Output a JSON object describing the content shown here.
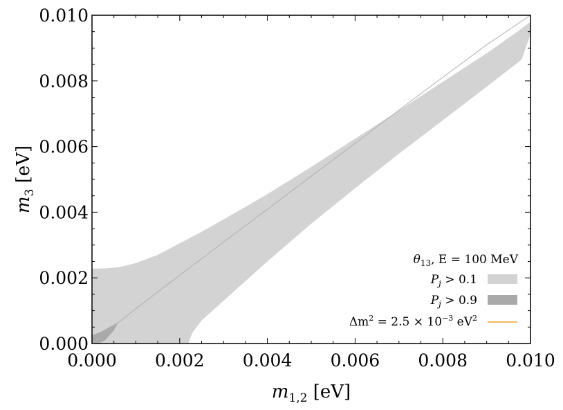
{
  "chart_data": {
    "type": "area",
    "xlabel": "m_{1,2} [eV]",
    "ylabel": "m_3 [eV]",
    "xlim": [
      0.0,
      0.01
    ],
    "ylim": [
      0.0,
      0.01
    ],
    "x_ticks": [
      "0.000",
      "0.002",
      "0.004",
      "0.006",
      "0.008",
      "0.010"
    ],
    "y_ticks": [
      "0.000",
      "0.002",
      "0.004",
      "0.006",
      "0.008",
      "0.010"
    ],
    "legend_position": "lower-right",
    "legend_title": "θ₁₃, E = 100 MeV",
    "series": [
      {
        "name": "P_j > 0.1",
        "color": "#d3d3d3",
        "upper": {
          "x": [
            0.0,
            0.0003,
            0.0006,
            0.001,
            0.0015,
            0.002,
            0.0025,
            0.003,
            0.0035,
            0.004,
            0.005,
            0.006,
            0.007,
            0.008,
            0.009,
            0.0097,
            0.01
          ],
          "y": [
            0.00228,
            0.00229,
            0.00232,
            0.00245,
            0.0027,
            0.00305,
            0.0034,
            0.00378,
            0.00416,
            0.00455,
            0.00538,
            0.00624,
            0.0071,
            0.00797,
            0.00884,
            0.0095,
            0.0098
          ]
        },
        "lower_left": {
          "x": [
            0.0,
            0.0005,
            0.001,
            0.0015,
            0.002,
            0.00215,
            0.0022
          ],
          "y": [
            0.0,
            0.0,
            0.0,
            0.0,
            0.0,
            0.0,
            0.0
          ]
        },
        "lower": {
          "x": [
            0.0022,
            0.00225,
            0.0023,
            0.0025,
            0.003,
            0.0035,
            0.004,
            0.005,
            0.006,
            0.007,
            0.008,
            0.009,
            0.0098
          ],
          "y": [
            0.0,
            0.0002,
            0.00035,
            0.0007,
            0.0013,
            0.0019,
            0.0025,
            0.00365,
            0.00473,
            0.00578,
            0.0068,
            0.00782,
            0.00865
          ]
        }
      },
      {
        "name": "P_j > 0.9",
        "color": "#a9a9a9",
        "upper": {
          "x": [
            0.0,
            0.0002,
            0.0004,
            0.0006
          ],
          "y": [
            0.00025,
            0.00035,
            0.0005,
            0.00065
          ]
        },
        "lower": {
          "x": [
            0.0,
            0.00015,
            0.0003,
            0.0005,
            0.0006
          ],
          "y": [
            0.0,
            0.0,
            0.0001,
            0.0004,
            0.00065
          ]
        }
      },
      {
        "name": "Δm² = 2.5 × 10⁻³ eV²",
        "color": "#f0a030",
        "x": [
          0.0,
          0.001,
          0.002,
          0.003,
          0.004,
          0.005,
          0.006,
          0.007,
          0.008,
          0.009,
          0.01
        ],
        "y": [
          0.0,
          0.00106,
          0.00208,
          0.00309,
          0.00409,
          0.0051,
          0.0061,
          0.00711,
          0.00811,
          0.0091,
          0.01
        ]
      }
    ]
  },
  "legend": {
    "title_theta": "θ",
    "title_sub": "13",
    "title_rest": ", E = 100 MeV",
    "entry1": "P  > 0.1",
    "entry1_main": "P",
    "entry1_sub": "j",
    "entry1_rest": " > 0.1",
    "entry2_main": "P",
    "entry2_sub": "j",
    "entry2_rest": " > 0.9",
    "entry3_a": "Δm",
    "entry3_sup": "2",
    "entry3_b": " = 2.5 × 10",
    "entry3_exp": "−3",
    "entry3_c": " eV",
    "entry3_sup2": "2"
  },
  "axes": {
    "x_main": "m",
    "x_sub": "1,2",
    "x_unit": " [eV]",
    "y_main": "m",
    "y_sub": "3",
    "y_unit": " [eV]"
  }
}
